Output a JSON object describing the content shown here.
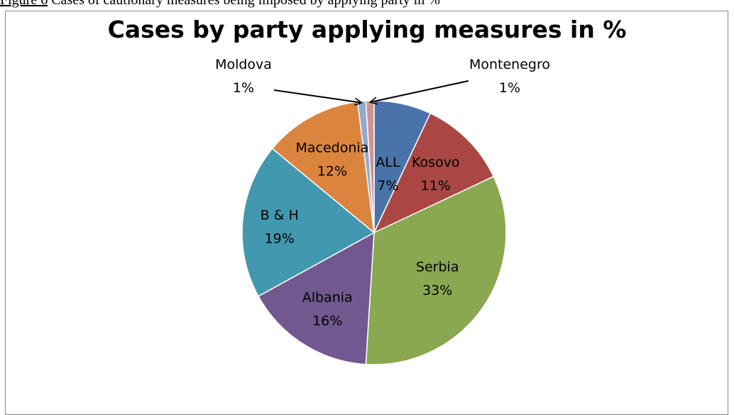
{
  "caption": {
    "label": "Figure 6",
    "text": "Cases of cautionary measures being imposed by applying party in %"
  },
  "chart_data": {
    "type": "pie",
    "title": "Cases by party applying measures in %",
    "slices": [
      {
        "label": "ALL",
        "value": 7,
        "value_label": "7%",
        "color": "#4a73aa"
      },
      {
        "label": "Kosovo",
        "value": 11,
        "value_label": "11%",
        "color": "#aa4744"
      },
      {
        "label": "Serbia",
        "value": 33,
        "value_label": "33%",
        "color": "#8aa84f"
      },
      {
        "label": "Albania",
        "value": 16,
        "value_label": "16%",
        "color": "#71588f"
      },
      {
        "label": "B & H",
        "value": 19,
        "value_label": "19%",
        "color": "#4198af"
      },
      {
        "label": "Macedonia",
        "value": 12,
        "value_label": "12%",
        "color": "#db843d"
      },
      {
        "label": "Moldova",
        "value": 1,
        "value_label": "1%",
        "color": "#93a9cf"
      },
      {
        "label": "Montenegro",
        "value": 1,
        "value_label": "1%",
        "color": "#d19392"
      }
    ],
    "legend": "none"
  }
}
